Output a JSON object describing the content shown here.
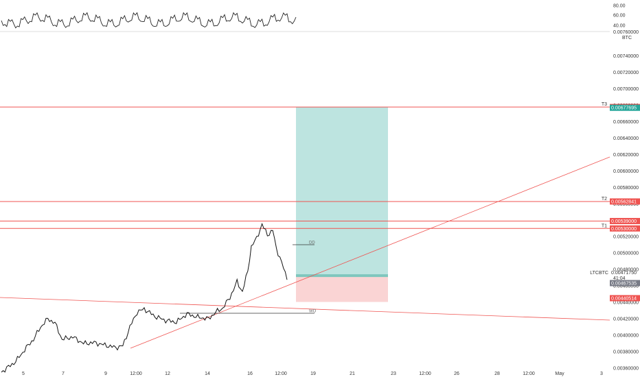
{
  "chart_data": {
    "type": "line",
    "symbol": "LTCBTC",
    "currency": "BTC",
    "indicator_panel": {
      "ticks": [
        "80.00",
        "60.00",
        "40.00"
      ]
    },
    "price_axis": {
      "ylim": [
        0.00355,
        0.00768
      ],
      "ticks": [
        "0.00740000",
        "0.00720000",
        "0.00700000",
        "0.00680000",
        "0.00660000",
        "0.00640000",
        "0.00620000",
        "0.00600000",
        "0.00580000",
        "0.00560000",
        "0.00540000",
        "0.00520000",
        "0.00500000",
        "0.00480000",
        "0.00460000",
        "0.00440000",
        "0.00420000",
        "0.00400000",
        "0.00380000",
        "0.00360000"
      ],
      "partial_top_tick": "0.00760000"
    },
    "x_axis": {
      "ticks": [
        "5",
        "7",
        "9",
        "12:00",
        "12",
        "14",
        "16",
        "12:00",
        "19",
        "21",
        "23",
        "12:00",
        "26",
        "28",
        "12:00",
        "May",
        "3"
      ]
    },
    "levels": [
      {
        "label": "T3",
        "price": 0.006778,
        "tag": "0.00677804"
      },
      {
        "label": "T2",
        "price": 0.005628,
        "tag": "0.00562841"
      },
      {
        "label": "",
        "price": 0.00539,
        "tag": "0.00539000"
      },
      {
        "label": "T1",
        "price": 0.0053,
        "tag": "0.00530000"
      }
    ],
    "position": {
      "target_tag": "0.00677695",
      "entry_tag": "0.00471750",
      "countdown": "41:04",
      "current_tag": "0.00467535",
      "stop_tag": "0.00440514"
    },
    "annotations": {
      "dd": "DD",
      "wo": "WO"
    },
    "price_path": [
      {
        "i": 0,
        "p": 0.00355
      },
      {
        "i": 8,
        "p": 0.00368
      },
      {
        "i": 14,
        "p": 0.00385
      },
      {
        "i": 18,
        "p": 0.00395
      },
      {
        "i": 22,
        "p": 0.0041
      },
      {
        "i": 26,
        "p": 0.0042
      },
      {
        "i": 30,
        "p": 0.00415
      },
      {
        "i": 34,
        "p": 0.00395
      },
      {
        "i": 40,
        "p": 0.00398
      },
      {
        "i": 46,
        "p": 0.0039
      },
      {
        "i": 52,
        "p": 0.00391
      },
      {
        "i": 58,
        "p": 0.00388
      },
      {
        "i": 64,
        "p": 0.00385
      },
      {
        "i": 68,
        "p": 0.00387
      },
      {
        "i": 72,
        "p": 0.0041
      },
      {
        "i": 76,
        "p": 0.00428
      },
      {
        "i": 80,
        "p": 0.00432
      },
      {
        "i": 86,
        "p": 0.00423
      },
      {
        "i": 92,
        "p": 0.00418
      },
      {
        "i": 98,
        "p": 0.00416
      },
      {
        "i": 104,
        "p": 0.00426
      },
      {
        "i": 110,
        "p": 0.00422
      },
      {
        "i": 116,
        "p": 0.0042
      },
      {
        "i": 120,
        "p": 0.00428
      },
      {
        "i": 124,
        "p": 0.00433
      },
      {
        "i": 128,
        "p": 0.00446
      },
      {
        "i": 132,
        "p": 0.00465
      },
      {
        "i": 135,
        "p": 0.00453
      },
      {
        "i": 138,
        "p": 0.00478
      },
      {
        "i": 140,
        "p": 0.00508
      },
      {
        "i": 143,
        "p": 0.00518
      },
      {
        "i": 146,
        "p": 0.00535
      },
      {
        "i": 149,
        "p": 0.00522
      },
      {
        "i": 152,
        "p": 0.00528
      },
      {
        "i": 154,
        "p": 0.00505
      },
      {
        "i": 156,
        "p": 0.00495
      },
      {
        "i": 158,
        "p": 0.00482
      },
      {
        "i": 160,
        "p": 0.004675
      }
    ]
  }
}
